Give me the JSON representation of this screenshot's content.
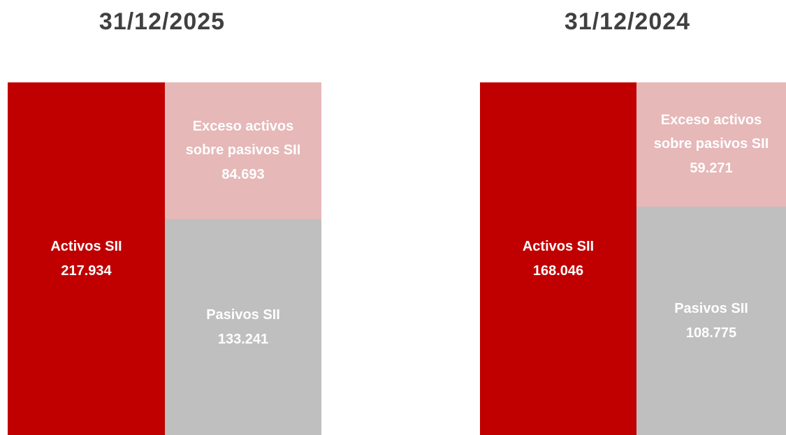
{
  "chart_data": [
    {
      "type": "stacked_bar",
      "title": "31/12/2025",
      "bars": [
        {
          "segments": [
            {
              "name": "Activos SII",
              "color": "#c00000",
              "value": 217.934
            }
          ]
        },
        {
          "segments": [
            {
              "name": "Pasivos SII",
              "color": "#bfbfbf",
              "value": 133.241
            },
            {
              "name": "Exceso activos sobre pasivos SII",
              "color": "#e6b8b8",
              "value": 84.693
            }
          ]
        }
      ]
    },
    {
      "type": "stacked_bar",
      "title": "31/12/2024",
      "bars": [
        {
          "segments": [
            {
              "name": "Activos SII",
              "color": "#c00000",
              "value": 168.046
            }
          ]
        },
        {
          "segments": [
            {
              "name": "Pasivos SII",
              "color": "#bfbfbf",
              "value": 108.775
            },
            {
              "name": "Exceso activos sobre pasivos SII",
              "color": "#e6b8b8",
              "value": 59.271
            }
          ]
        }
      ]
    }
  ]
}
